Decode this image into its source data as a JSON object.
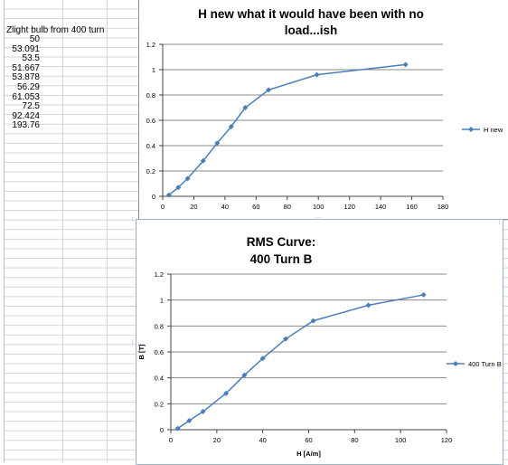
{
  "sheet": {
    "header_cell": "Zlight bulb from 400 turn",
    "values": [
      "50",
      "53.091",
      "53.5",
      "51.667",
      "53.878",
      "56.29",
      "61.053",
      "72.5",
      "92.424",
      "193.76"
    ]
  },
  "colors": {
    "series": "#4a7ebb",
    "gridline": "#888888",
    "sheet_grid": "#d4d4d4",
    "chart_border": "#8c8c8c"
  },
  "chart_data": [
    {
      "type": "scatter",
      "title_line1": "H new  what it would have been with no",
      "title_line2": "load...ish",
      "xlabel": "",
      "ylabel": "",
      "xlim": [
        0,
        180
      ],
      "ylim": [
        0,
        1.2
      ],
      "xticks": [
        "0",
        "20",
        "40",
        "60",
        "80",
        "100",
        "120",
        "140",
        "160",
        "180"
      ],
      "yticks": [
        "0",
        "0.2",
        "0.4",
        "0.6",
        "0.8",
        "1",
        "1.2"
      ],
      "grid": "horizontal",
      "legend": "right",
      "series": [
        {
          "name": "H new",
          "x": [
            4,
            10,
            16,
            26,
            35,
            44,
            53,
            68,
            99,
            156
          ],
          "y": [
            0.01,
            0.07,
            0.14,
            0.28,
            0.42,
            0.55,
            0.7,
            0.84,
            0.96,
            1.04
          ]
        }
      ]
    },
    {
      "type": "scatter",
      "title_line1": "RMS Curve:",
      "title_line2": "400 Turn B",
      "xlabel": "H [A/m]",
      "ylabel": "B [T]",
      "xlim": [
        0,
        120
      ],
      "ylim": [
        0,
        1.2
      ],
      "xticks": [
        "0",
        "20",
        "40",
        "60",
        "80",
        "100",
        "120"
      ],
      "yticks": [
        "0",
        "0.2",
        "0.4",
        "0.6",
        "0.8",
        "1",
        "1.2"
      ],
      "grid": "horizontal",
      "legend": "right",
      "series": [
        {
          "name": "400 Turn B",
          "x": [
            3,
            8,
            14,
            24,
            32,
            40,
            50,
            62,
            86,
            110
          ],
          "y": [
            0.01,
            0.07,
            0.14,
            0.28,
            0.42,
            0.55,
            0.7,
            0.84,
            0.96,
            1.04
          ]
        }
      ]
    }
  ]
}
